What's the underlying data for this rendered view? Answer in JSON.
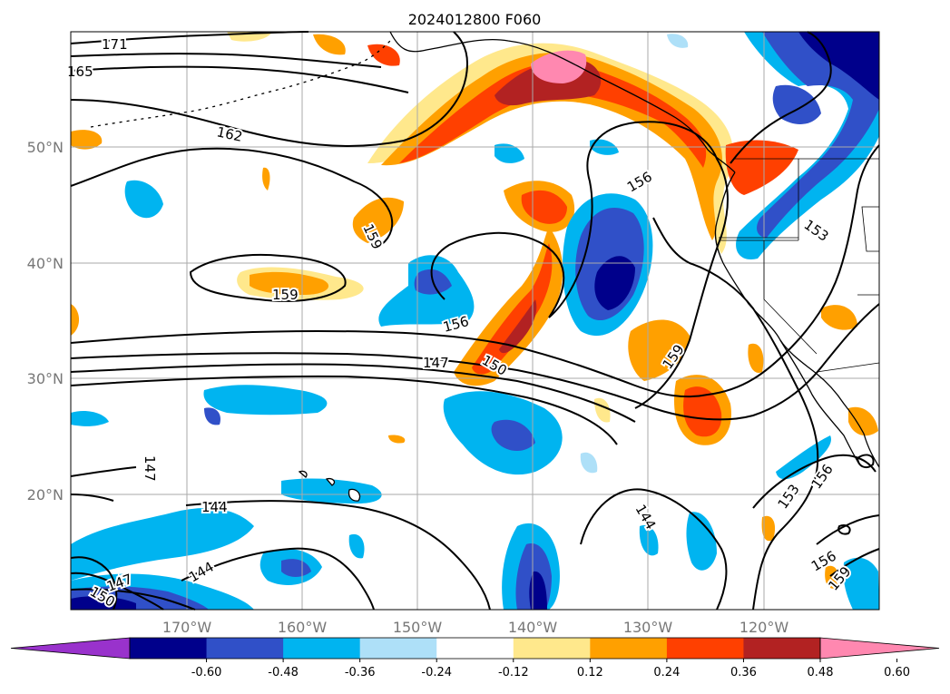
{
  "title": "2024012800 F060",
  "lon_ticks": [
    "170°W",
    "160°W",
    "150°W",
    "140°W",
    "130°W",
    "120°W"
  ],
  "lat_ticks": [
    "50°N",
    "40°N",
    "30°N",
    "20°N"
  ],
  "colorbar": {
    "ticks": [
      "-0.60",
      "-0.48",
      "-0.36",
      "-0.24",
      "-0.12",
      "0.12",
      "0.24",
      "0.36",
      "0.48",
      "0.60"
    ],
    "colors": [
      "#9932cc",
      "#00008b",
      "#3050c8",
      "#00b4f0",
      "#aee0f8",
      "#ffffff",
      "#ffe88c",
      "#ffa000",
      "#ff4000",
      "#b22222",
      "#ff88b0"
    ]
  },
  "contour_labels": [
    "171",
    "165",
    "162",
    "159",
    "159",
    "156",
    "156",
    "153",
    "150",
    "147",
    "147",
    "144",
    "144",
    "144",
    "150",
    "147",
    "153",
    "156",
    "156",
    "159",
    "159"
  ],
  "features": {
    "coastline": "coastline",
    "borders": "state borders",
    "fill_field": "shaded field",
    "height_contours": "black contours"
  }
}
